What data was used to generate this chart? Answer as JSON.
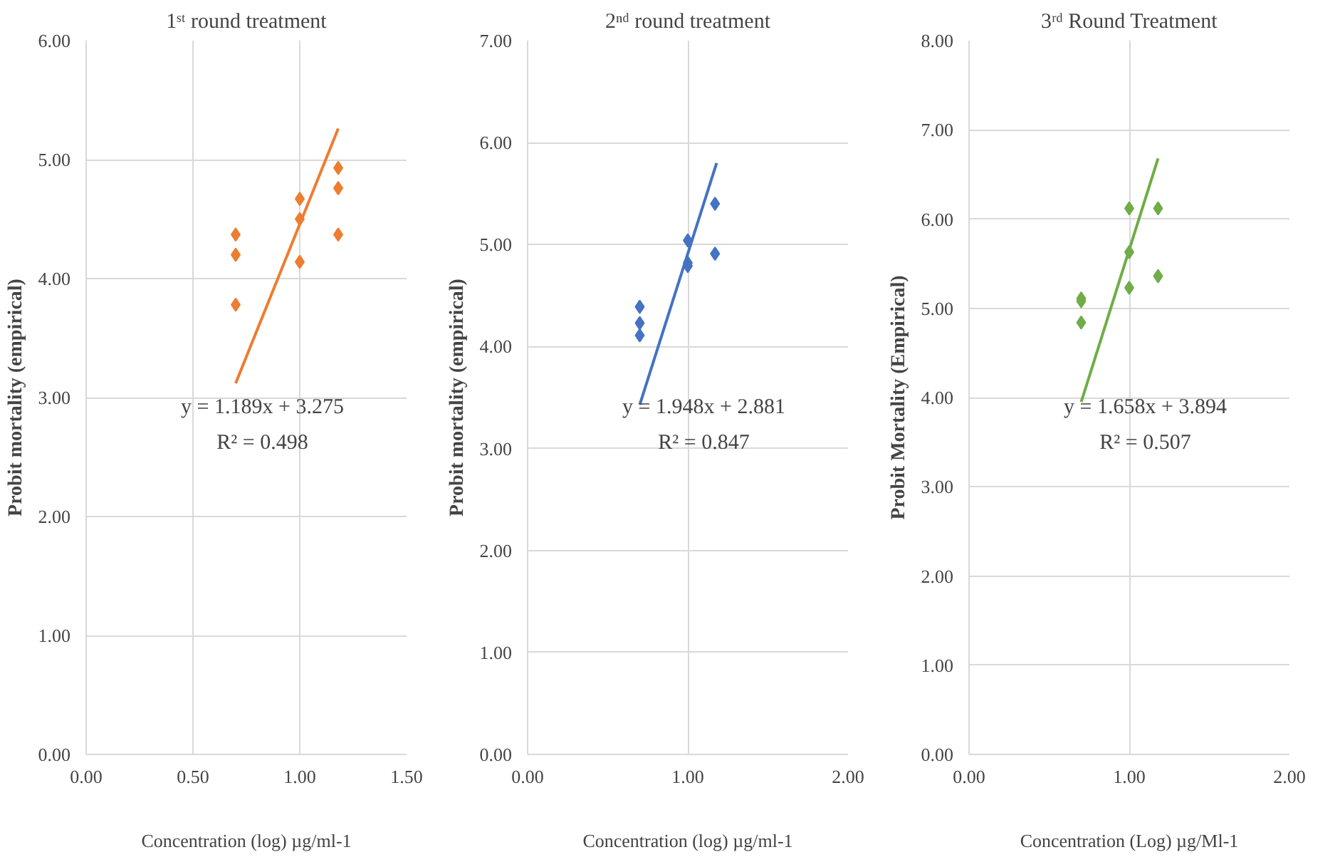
{
  "chart_data": [
    {
      "type": "scatter",
      "title": "1ˢᵗ round treatment",
      "xlabel": "Concentration (log) µg/ml-1",
      "ylabel": "Probit mortality (empirical)",
      "annotations": [
        "y = 1.189x + 3.275",
        "R² = 0.498"
      ],
      "grid": true,
      "xlim": [
        0,
        1.5
      ],
      "xticks": [
        {
          "value": 0,
          "label": "0.00"
        },
        {
          "value": 0.5,
          "label": "0.50"
        },
        {
          "value": 1,
          "label": "1.00"
        },
        {
          "value": 1.5,
          "label": "1.50"
        }
      ],
      "ylim": [
        0,
        6
      ],
      "yticks": [
        {
          "value": 0,
          "label": "0.00"
        },
        {
          "value": 1,
          "label": "1.00"
        },
        {
          "value": 2,
          "label": "2.00"
        },
        {
          "value": 3,
          "label": "3.00"
        },
        {
          "value": 4,
          "label": "4.00"
        },
        {
          "value": 5,
          "label": "5.00"
        },
        {
          "value": 6,
          "label": "6.00"
        }
      ],
      "series": [
        {
          "marker": "diamond",
          "color": "#ed7d31",
          "x": [
            0.7,
            0.7,
            0.7,
            1.0,
            1.0,
            1.0,
            1.18,
            1.18,
            1.18
          ],
          "values": [
            4.37,
            4.2,
            3.78,
            4.67,
            4.5,
            4.14,
            4.93,
            4.76,
            4.37
          ]
        },
        {
          "type": "line",
          "color": "#ed7d31",
          "x": [
            0.7,
            1.18
          ],
          "values": [
            3.12,
            5.26
          ]
        }
      ]
    },
    {
      "type": "scatter",
      "title": "2ⁿᵈ round treatment",
      "xlabel": "Concentration (log) µg/ml-1",
      "ylabel": "Probit mortality (empirical)",
      "annotations": [
        "y = 1.948x + 2.881",
        "R² = 0.847"
      ],
      "grid": true,
      "xlim": [
        0,
        2
      ],
      "xticks": [
        {
          "value": 0,
          "label": "0.00"
        },
        {
          "value": 1,
          "label": "1.00"
        },
        {
          "value": 2,
          "label": "2.00"
        }
      ],
      "ylim": [
        0,
        7
      ],
      "yticks": [
        {
          "value": 0,
          "label": "0.00"
        },
        {
          "value": 1,
          "label": "1.00"
        },
        {
          "value": 2,
          "label": "2.00"
        },
        {
          "value": 3,
          "label": "3.00"
        },
        {
          "value": 4,
          "label": "4.00"
        },
        {
          "value": 5,
          "label": "5.00"
        },
        {
          "value": 6,
          "label": "6.00"
        },
        {
          "value": 7,
          "label": "7.00"
        }
      ],
      "series": [
        {
          "marker": "diamond",
          "color": "#4472c4",
          "x": [
            0.7,
            0.7,
            0.7,
            1.0,
            1.0,
            1.0,
            1.17,
            1.17
          ],
          "values": [
            4.39,
            4.23,
            4.11,
            5.04,
            4.82,
            4.79,
            5.4,
            4.91
          ]
        },
        {
          "type": "line",
          "color": "#4472c4",
          "x": [
            0.7,
            1.18
          ],
          "values": [
            3.43,
            5.8
          ]
        }
      ]
    },
    {
      "type": "scatter",
      "title": "3ʳᵈ Round Treatment",
      "xlabel": "Concentration (Log) µg/Ml-1",
      "ylabel": "Probit Mortality (Empirical)",
      "annotations": [
        "y = 1.658x + 3.894",
        "R² = 0.507"
      ],
      "grid": true,
      "xlim": [
        0,
        2
      ],
      "xticks": [
        {
          "value": 0,
          "label": "0.00"
        },
        {
          "value": 1,
          "label": "1.00"
        },
        {
          "value": 2,
          "label": "2.00"
        }
      ],
      "ylim": [
        0,
        8
      ],
      "yticks": [
        {
          "value": 0,
          "label": "0.00"
        },
        {
          "value": 1,
          "label": "1.00"
        },
        {
          "value": 2,
          "label": "2.00"
        },
        {
          "value": 3,
          "label": "3.00"
        },
        {
          "value": 4,
          "label": "4.00"
        },
        {
          "value": 5,
          "label": "5.00"
        },
        {
          "value": 6,
          "label": "6.00"
        },
        {
          "value": 7,
          "label": "7.00"
        },
        {
          "value": 8,
          "label": "8.00"
        }
      ],
      "series": [
        {
          "marker": "diamond",
          "color": "#70ad47",
          "x": [
            0.7,
            0.7,
            0.7,
            1.0,
            1.0,
            1.0,
            1.18,
            1.18
          ],
          "values": [
            5.11,
            5.08,
            4.84,
            6.12,
            5.63,
            5.23,
            6.12,
            5.36
          ]
        },
        {
          "type": "line",
          "color": "#70ad47",
          "x": [
            0.7,
            1.18
          ],
          "values": [
            3.95,
            6.68
          ]
        }
      ]
    }
  ]
}
